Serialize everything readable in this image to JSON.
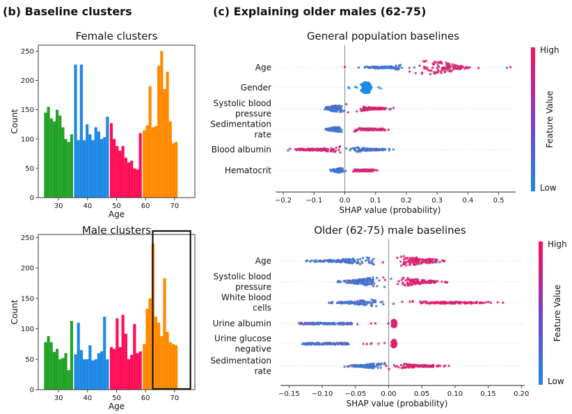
{
  "panels": {
    "b_title": "(b) Baseline clusters",
    "c_title": "(c) Explaining older males (62-75)"
  },
  "colors": {
    "green": "#22a327",
    "blue": "#1e88e5",
    "pink": "#ff0d57",
    "orange": "#ff8a00",
    "shap_low": "#1e88e5",
    "shap_high": "#ff0d57"
  },
  "chart_data": [
    {
      "id": "female",
      "type": "bar",
      "title": "Female clusters",
      "xlabel": "Age",
      "ylabel": "Count",
      "xlim": [
        23,
        77
      ],
      "ylim": [
        0,
        260
      ],
      "xticks": [
        30,
        40,
        50,
        60,
        70
      ],
      "yticks": [
        0,
        50,
        100,
        150,
        200,
        250
      ],
      "bin_start": 25,
      "bin_width": 1,
      "clusters": [
        {
          "color": "green",
          "values": [
            145,
            155,
            135,
            130,
            150,
            140,
            120,
            100,
            95,
            108
          ]
        },
        {
          "color": "blue",
          "values": [
            227,
            98,
            227,
            98,
            125,
            108,
            98,
            120,
            113,
            100,
            103,
            138
          ]
        },
        {
          "color": "pink",
          "values": [
            127,
            100,
            88,
            80,
            88,
            68,
            60,
            63,
            50,
            48,
            110
          ]
        },
        {
          "color": "orange",
          "values": [
            115,
            123,
            190,
            120,
            122,
            225,
            250,
            185,
            215,
            130,
            93,
            95
          ]
        }
      ]
    },
    {
      "id": "male",
      "type": "bar",
      "title": "Male clusters",
      "xlabel": "Age",
      "ylabel": "Count",
      "xlim": [
        23,
        77
      ],
      "ylim": [
        0,
        255
      ],
      "xticks": [
        30,
        40,
        50,
        60,
        70
      ],
      "yticks": [
        0,
        50,
        100,
        150,
        200,
        250
      ],
      "bin_start": 25,
      "bin_width": 1,
      "highlight_range": [
        62,
        75
      ],
      "clusters": [
        {
          "color": "green",
          "values": [
            78,
            88,
            78,
            62,
            67,
            50,
            52,
            60,
            32,
            113
          ]
        },
        {
          "color": "blue",
          "values": [
            58,
            110,
            65,
            50,
            50,
            73,
            48,
            50,
            60,
            63,
            120,
            50
          ]
        },
        {
          "color": "pink",
          "values": [
            70,
            67,
            117,
            70,
            123,
            92,
            50,
            57,
            108,
            60,
            63
          ]
        },
        {
          "color": "orange",
          "values": [
            75,
            133,
            150,
            240,
            120,
            110,
            88,
            183,
            95,
            78,
            75,
            73
          ]
        }
      ]
    },
    {
      "id": "shap_general",
      "type": "scatter",
      "subtype": "beeswarm",
      "title": "General population baselines",
      "xlabel": "SHAP value (probability)",
      "xlim": [
        -0.225,
        0.555
      ],
      "xticks": [
        -0.2,
        -0.1,
        0.0,
        0.1,
        0.2,
        0.3,
        0.4,
        0.5
      ],
      "xtick_labels": [
        "−0.2",
        "−0.1",
        "0.0",
        "0.1",
        "0.2",
        "0.3",
        "0.4",
        "0.5"
      ],
      "colorbar": {
        "label": "Feature Value",
        "high": "High",
        "low": "Low"
      },
      "features": [
        {
          "label": [
            "Age"
          ],
          "range": [
            -0.02,
            0.54
          ],
          "low_range": [
            0.03,
            0.22
          ],
          "high_range": [
            0.2,
            0.44
          ],
          "center": 0.27,
          "spread": 0.07,
          "thickness": 1.0
        },
        {
          "label": [
            "Gender"
          ],
          "range": [
            0.0,
            0.12
          ],
          "low_range": [
            0.05,
            0.09
          ],
          "high_range": [
            0.05,
            0.09
          ],
          "center": 0.07,
          "spread": 0.02,
          "thickness": 0.7,
          "solid": "blue"
        },
        {
          "label": [
            "Systolic blood",
            "pressure"
          ],
          "range": [
            -0.07,
            0.16
          ],
          "low_range": [
            -0.07,
            0.0
          ],
          "high_range": [
            0.03,
            0.16
          ],
          "center": 0.01,
          "spread": 0.05,
          "thickness": 0.6
        },
        {
          "label": [
            "Sedimentation",
            "rate"
          ],
          "range": [
            -0.07,
            0.15
          ],
          "low_range": [
            -0.07,
            0.0
          ],
          "high_range": [
            0.02,
            0.15
          ],
          "center": 0.0,
          "spread": 0.04,
          "thickness": 0.4
        },
        {
          "label": [
            "Blood albumin"
          ],
          "range": [
            -0.2,
            0.16
          ],
          "low_range": [
            0.0,
            0.16
          ],
          "high_range": [
            -0.2,
            0.0
          ],
          "center": 0.0,
          "spread": 0.05,
          "thickness": 0.5
        },
        {
          "label": [
            "Hematocrit"
          ],
          "range": [
            -0.05,
            0.11
          ],
          "low_range": [
            -0.05,
            0.0
          ],
          "high_range": [
            0.02,
            0.11
          ],
          "center": 0.0,
          "spread": 0.03,
          "thickness": 0.35
        }
      ]
    },
    {
      "id": "shap_older_male",
      "type": "scatter",
      "subtype": "beeswarm",
      "title": "Older (62-75) male baselines",
      "xlabel": "SHAP value (probability)",
      "xlim": [
        -0.163,
        0.205
      ],
      "xticks": [
        -0.15,
        -0.1,
        -0.05,
        0.0,
        0.05,
        0.1,
        0.15,
        0.2
      ],
      "xtick_labels": [
        "−0.15",
        "−0.10",
        "−0.05",
        "0.00",
        "0.05",
        "0.10",
        "0.15",
        "0.20"
      ],
      "colorbar": {
        "label": "Feature Value",
        "high": "High",
        "low": "Low"
      },
      "features": [
        {
          "label": [
            "Age"
          ],
          "range": [
            -0.14,
            0.095
          ],
          "low_range": [
            -0.14,
            0.0
          ],
          "high_range": [
            0.0,
            0.095
          ],
          "center": 0.0,
          "spread": 0.05,
          "thickness": 0.7
        },
        {
          "label": [
            "Systolic blood",
            "pressure"
          ],
          "range": [
            -0.08,
            0.1
          ],
          "low_range": [
            -0.08,
            0.0
          ],
          "high_range": [
            0.0,
            0.1
          ],
          "center": 0.0,
          "spread": 0.04,
          "thickness": 0.7
        },
        {
          "label": [
            "White blood",
            "cells"
          ],
          "range": [
            -0.1,
            0.19
          ],
          "low_range": [
            -0.1,
            0.0
          ],
          "high_range": [
            0.0,
            0.19
          ],
          "center": 0.0,
          "spread": 0.04,
          "thickness": 0.55
        },
        {
          "label": [
            "Urine albumin"
          ],
          "range": [
            -0.135,
            0.015
          ],
          "low_range": [
            -0.135,
            -0.055
          ],
          "high_range": [
            0.003,
            0.013
          ],
          "center": 0.008,
          "spread": 0.004,
          "thickness": 0.5,
          "split": true
        },
        {
          "label": [
            "Urine glucose",
            "negative"
          ],
          "range": [
            -0.13,
            0.015
          ],
          "low_range": [
            -0.13,
            -0.06
          ],
          "high_range": [
            0.003,
            0.013
          ],
          "center": 0.008,
          "spread": 0.004,
          "thickness": 0.5,
          "split": true
        },
        {
          "label": [
            "Sedimentation",
            "rate"
          ],
          "range": [
            -0.07,
            0.095
          ],
          "low_range": [
            -0.07,
            0.0
          ],
          "high_range": [
            0.0,
            0.095
          ],
          "center": 0.0,
          "spread": 0.03,
          "thickness": 0.45
        }
      ]
    }
  ]
}
